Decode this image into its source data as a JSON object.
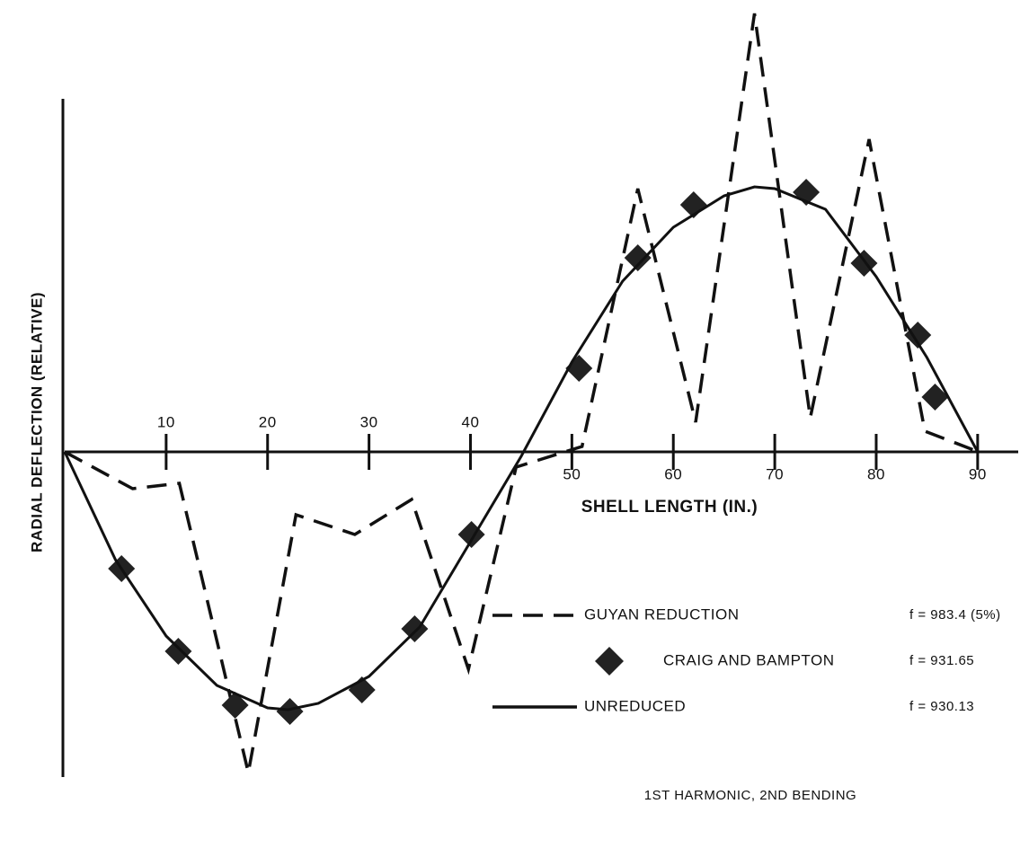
{
  "chart_data": {
    "type": "line",
    "xlabel": "SHELL LENGTH (IN.)",
    "ylabel": "RADIAL DEFLECTION (RELATIVE)",
    "annotation": "1ST HARMONIC, 2ND BENDING",
    "xlim": [
      0,
      94
    ],
    "ylim": [
      -3.6,
      4.9
    ],
    "xticks": [
      10,
      20,
      30,
      40,
      50,
      60,
      70,
      80,
      90
    ],
    "series": [
      {
        "name": "GUYAN REDUCTION",
        "label": "f = 983.4 (5%)",
        "style": "dashed",
        "color": "#111111",
        "x": [
          0,
          6.7,
          11.3,
          18.1,
          22.8,
          28.6,
          34.2,
          39.8,
          44.5,
          51.0,
          56.5,
          62.2,
          68.0,
          73.5,
          79.3,
          84.8,
          90.1
        ],
        "values": [
          0,
          -0.41,
          -0.35,
          -3.57,
          -0.7,
          -0.92,
          -0.53,
          -2.42,
          -0.17,
          0.06,
          2.93,
          0.33,
          4.88,
          0.38,
          3.48,
          0.23,
          0
        ]
      },
      {
        "name": "CRAIG AND BAMPTON",
        "label": "f = 931.65",
        "style": "markers",
        "color": "#222222",
        "x": [
          5.6,
          11.2,
          16.8,
          22.2,
          29.3,
          34.5,
          40.1,
          50.7,
          56.5,
          62.0,
          73.1,
          78.8,
          84.1,
          85.8
        ],
        "values": [
          -1.3,
          -2.22,
          -2.82,
          -2.89,
          -2.65,
          -1.97,
          -0.92,
          0.93,
          2.16,
          2.75,
          2.89,
          2.1,
          1.3,
          0.61
        ]
      },
      {
        "name": "UNREDUCED",
        "label": "f = 930.13",
        "style": "solid",
        "color": "#111111",
        "x": [
          0,
          5,
          10,
          15,
          20,
          22,
          25,
          30,
          35,
          40,
          45,
          50,
          55,
          60,
          65,
          68,
          70,
          75,
          80,
          85,
          90
        ],
        "values": [
          0,
          -1.2,
          -2.05,
          -2.6,
          -2.85,
          -2.87,
          -2.8,
          -2.5,
          -1.95,
          -1.0,
          -0.05,
          1.0,
          1.9,
          2.5,
          2.85,
          2.95,
          2.93,
          2.7,
          1.95,
          1.05,
          0
        ]
      }
    ]
  }
}
